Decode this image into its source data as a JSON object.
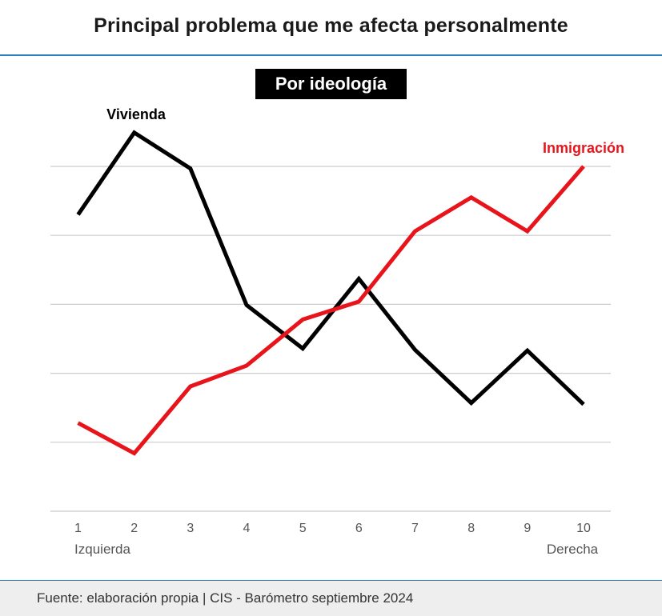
{
  "title": "Principal problema que me afecta personalmente",
  "subtitle": "Por ideología",
  "footer": "Fuente: elaboración propia | CIS - Barómetro septiembre 2024",
  "colors": {
    "series_black": "#000000",
    "series_red": "#e8141b",
    "grid": "#cccccc",
    "rule": "#2f7fba"
  },
  "chart_data": {
    "type": "line",
    "x": [
      1,
      2,
      3,
      4,
      5,
      6,
      7,
      8,
      9,
      10
    ],
    "tick_labels": [
      "1",
      "2",
      "3",
      "4",
      "5",
      "6",
      "7",
      "8",
      "9",
      "10"
    ],
    "axis_end_labels": {
      "left": "Izquierda",
      "right": "Derecha"
    },
    "ylim": [
      0,
      5
    ],
    "grid": true,
    "y_tick_labels_shown": false,
    "series": [
      {
        "name": "Vivienda",
        "color": "#000000",
        "values": [
          4.3,
          5.49,
          4.97,
          2.99,
          2.36,
          3.37,
          2.34,
          1.57,
          2.33,
          1.55
        ]
      },
      {
        "name": "Inmigración",
        "color": "#e8141b",
        "values": [
          1.28,
          0.84,
          1.81,
          2.11,
          2.78,
          3.04,
          4.06,
          4.55,
          4.06,
          5.0
        ]
      }
    ]
  }
}
